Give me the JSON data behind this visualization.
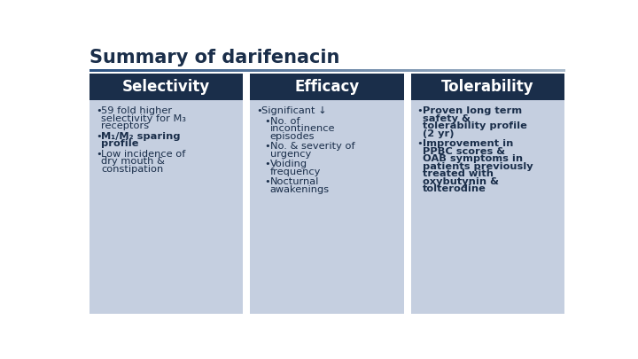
{
  "title": "Summary of darifenacin",
  "title_color": "#1a2e4a",
  "title_fontsize": 15,
  "background_color": "#ffffff",
  "header_bg": "#1a2e4a",
  "header_text_color": "#ffffff",
  "body_bg": "#c5cfe0",
  "body_text_color": "#1a2e4a",
  "divider_color_left": "#2a5080",
  "divider_color_right": "#aabbcc",
  "columns": [
    {
      "header": "Selectivity",
      "bullets": [
        {
          "text": "59 fold higher\nselectivity for M₃\nreceptors",
          "bold": false,
          "indent": 0
        },
        {
          "text": "M₁/M₂ sparing\nprofile",
          "bold": true,
          "indent": 0
        },
        {
          "text": "Low incidence of\ndry mouth &\nconstipation",
          "bold": false,
          "indent": 0
        }
      ]
    },
    {
      "header": "Efficacy",
      "bullets": [
        {
          "text": "Significant ↓",
          "bold": false,
          "indent": 0
        },
        {
          "text": "No. of\nincontinence\nepisodes",
          "bold": false,
          "indent": 1
        },
        {
          "text": "No. & severity of\nurgency",
          "bold": false,
          "indent": 1
        },
        {
          "text": "Voiding\nfrequency",
          "bold": false,
          "indent": 1
        },
        {
          "text": "Nocturnal\nawakenings",
          "bold": false,
          "indent": 1
        }
      ]
    },
    {
      "header": "Tolerability",
      "bullets": [
        {
          "text": "Proven long term\nsafety &\ntolerability profile\n(2 yr)",
          "bold": true,
          "indent": 0
        },
        {
          "text": "Improvement in\nPPBC scores &\nOAB symptoms in\npatients previously\ntreated with\noxybutynin &\ntolterodine",
          "bold": true,
          "indent": 0
        }
      ]
    }
  ]
}
